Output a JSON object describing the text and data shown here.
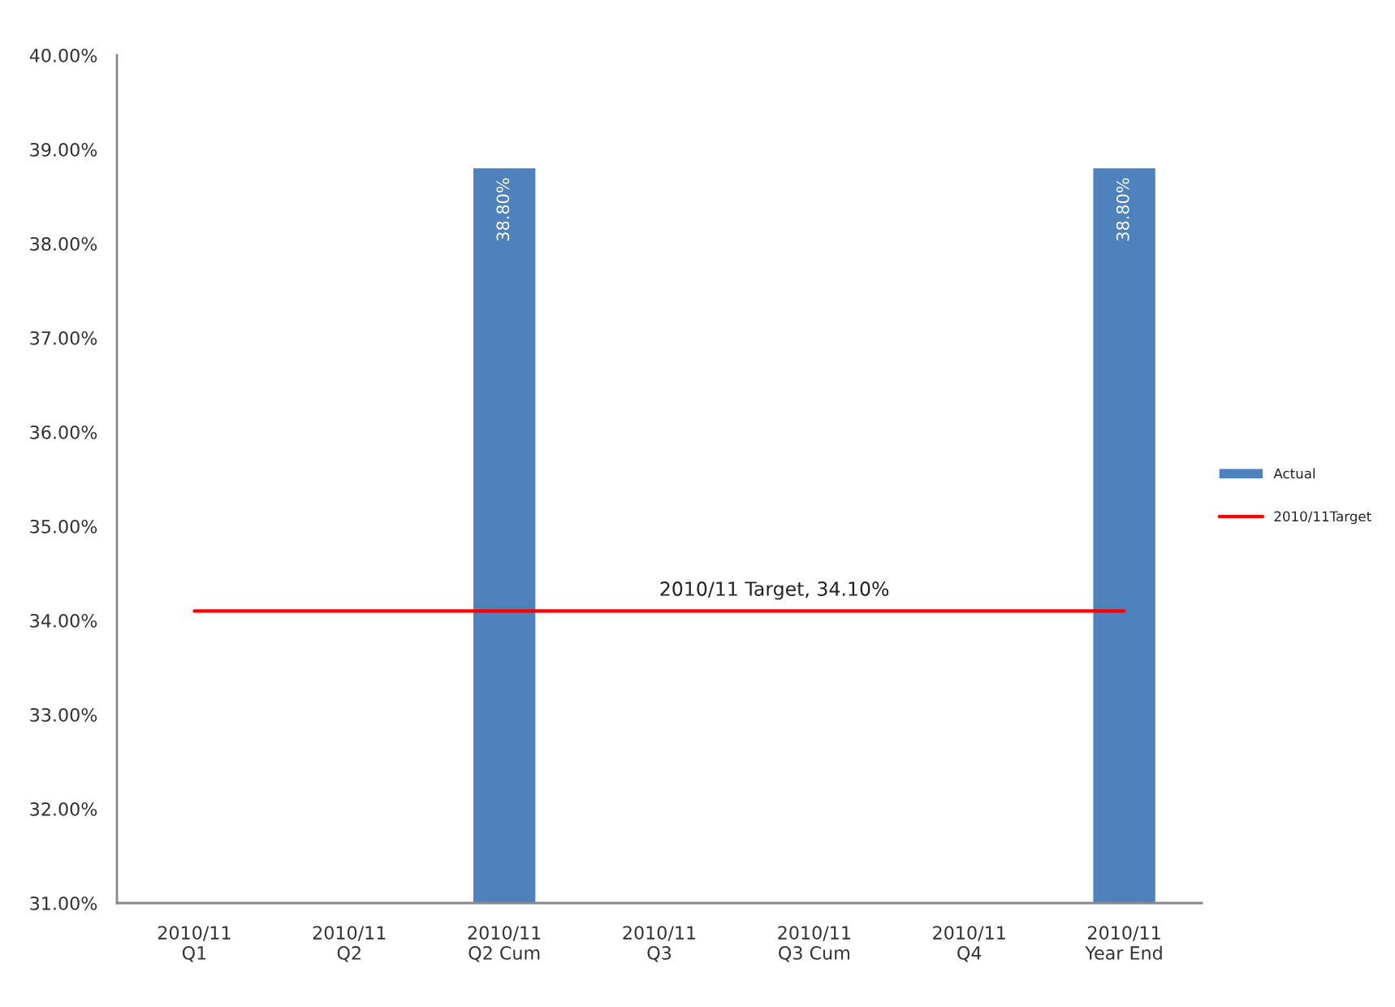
{
  "chart_data": {
    "type": "bar",
    "categories": [
      "2010/11\nQ1",
      "2010/11\nQ2",
      "2010/11\nQ2 Cum",
      "2010/11\nQ3",
      "2010/11\nQ3 Cum",
      "2010/11\nQ4",
      "2010/11\nYear End"
    ],
    "series": [
      {
        "name": "Actual",
        "color": "#4f81bd",
        "values": [
          null,
          null,
          38.8,
          null,
          null,
          null,
          38.8
        ],
        "value_labels": [
          null,
          null,
          "38.80%",
          null,
          null,
          null,
          "38.80%"
        ]
      },
      {
        "name": "2010/11Target",
        "type": "line",
        "color": "#ff0000",
        "line_style": "solid",
        "values": [
          34.1,
          34.1,
          34.1,
          34.1,
          34.1,
          34.1,
          34.1
        ]
      }
    ],
    "ylim": [
      31,
      40
    ],
    "yticks": [
      {
        "value": 31,
        "label": "31.00%"
      },
      {
        "value": 32,
        "label": "32.00%"
      },
      {
        "value": 33,
        "label": "33.00%"
      },
      {
        "value": 34,
        "label": "34.00%"
      },
      {
        "value": 35,
        "label": "35.00%"
      },
      {
        "value": 36,
        "label": "36.00%"
      },
      {
        "value": 37,
        "label": "37.00%"
      },
      {
        "value": 38,
        "label": "38.00%"
      },
      {
        "value": 39,
        "label": "39.00%"
      },
      {
        "value": 40,
        "label": "40.00%"
      }
    ],
    "legend": "right",
    "annotations": [
      {
        "text": "2010/11 Target, 34.10%",
        "y": 34.1
      }
    ]
  }
}
